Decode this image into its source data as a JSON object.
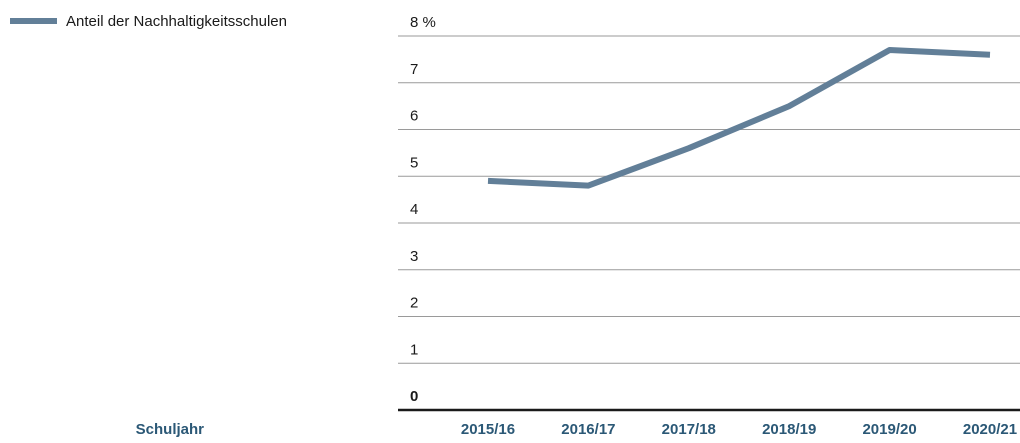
{
  "chart_data": {
    "type": "line",
    "x_label": "Schuljahr",
    "categories": [
      "2015/16",
      "2016/17",
      "2017/18",
      "2018/19",
      "2019/20",
      "2020/21"
    ],
    "series": [
      {
        "name": "Anteil der Nachhaltigkeitsschulen",
        "color": "#627f98",
        "values": [
          4.9,
          4.8,
          5.6,
          6.5,
          7.7,
          7.6
        ]
      }
    ],
    "ylim": [
      0,
      8
    ],
    "yticks": [
      0,
      1,
      2,
      3,
      4,
      5,
      6,
      7,
      {
        "value": 8,
        "label": "8 %"
      }
    ],
    "grid": true,
    "legend": "top-left"
  }
}
